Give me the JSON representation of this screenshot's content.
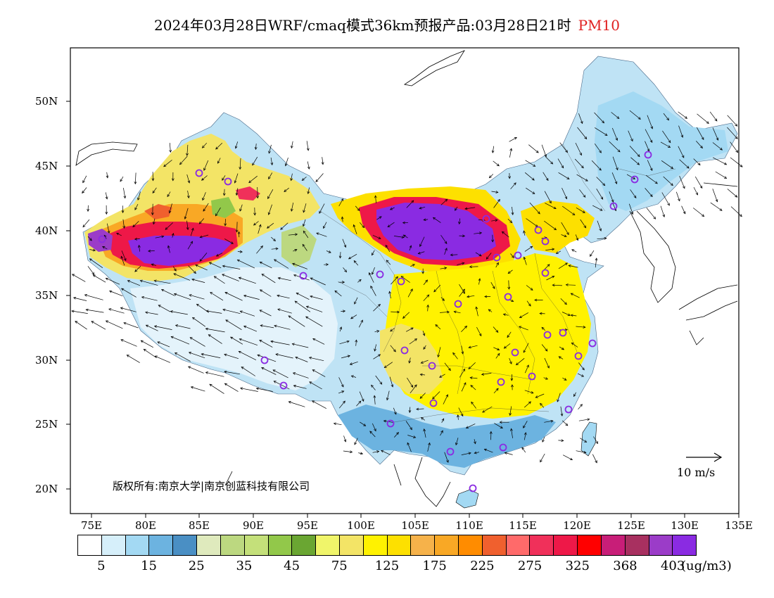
{
  "title": {
    "main": "2024年03月28日WRF/cmaq模式36km预报产品:03月28日21时",
    "pollutant": "PM10"
  },
  "axes": {
    "lat_labels": [
      "50N",
      "45N",
      "40N",
      "35N",
      "30N",
      "25N",
      "20N"
    ],
    "lon_labels": [
      "75E",
      "80E",
      "85E",
      "90E",
      "95E",
      "100E",
      "105E",
      "110E",
      "115E",
      "120E",
      "125E",
      "130E",
      "135E"
    ]
  },
  "copyright": "版权所有:南京大学|南京创蓝科技有限公司",
  "wind_scale": {
    "label": "10 m/s"
  },
  "colorbar": {
    "colors": [
      "#ffffff",
      "#d6effa",
      "#a3d9f3",
      "#6cb3e0",
      "#4a8fc4",
      "#dfeabd",
      "#bcd880",
      "#c4e07a",
      "#92c84a",
      "#6aa632",
      "#f0f56a",
      "#f3e466",
      "#fff200",
      "#fde000",
      "#f6b24a",
      "#f9a825",
      "#ff8c00",
      "#f0602e",
      "#ff6a6a",
      "#f0305a",
      "#ee1848",
      "#ff0000",
      "#c81e78",
      "#a83060",
      "#9b3cc8",
      "#8a2be2"
    ],
    "labels": [
      "5",
      "15",
      "25",
      "35",
      "45",
      "75",
      "125",
      "175",
      "225",
      "275",
      "325",
      "368",
      "403"
    ],
    "unit": "(ug/m3)"
  },
  "colors": {
    "title_pollutant": "#e02020",
    "high": "#8a2be2",
    "moderate": "#fff200",
    "clean": "#a3d9f3"
  }
}
